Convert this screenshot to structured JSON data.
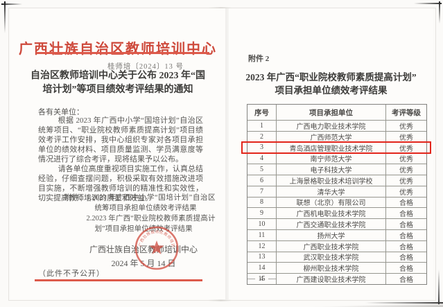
{
  "colors": {
    "letterhead_red": "#ce4a3c",
    "rule_red": "#dd5a4b",
    "highlight_red": "#e2251b",
    "seal_red": "#cf4437"
  },
  "left_page": {
    "letterhead": "广西壮族自治区教师培训中心",
    "doc_number": "桂师培〔2024〕13 号",
    "title_line1": "自治区教师培训中心关于公布 2023 年“国",
    "title_line2": "培计划”等项目绩效考评结果的通知",
    "salutation": "各有关单位：",
    "paragraphs": [
      "根据 2023 年广西中小学“国培计划”自治区统筹项目、“职业院校教师素质提高计划”项目绩效考评工作安排，我中心组织专家对各项目承担单位的绩效材料、项目质量监测、学员满意度等情况进行了综合考评，现将结果予以公布。",
      "请各单位高度重视项目实施工作，认真总结经验，仔细查摆问题，积极采取有效措施改进项目实施，不断增强教师培训的精准性和实效性，切实提高教师培训的质量和效益。"
    ],
    "attachments_label": "附件：",
    "attachments": [
      "1.2023 年广西中小学“国培计划”自治区统筹项目承担单位绩效考评结果",
      "2.2023 年广西“职业院校教师素质提高计划”项目承担单位绩效考评结果"
    ],
    "signature": "广西壮族自治区教师培训中心",
    "date": "2024 年 5 月 14 日",
    "confidential_note": "（此件不予公开）",
    "seal_text": "广西壮族自治区教师培训中心"
  },
  "right_page": {
    "attachment_label": "附件 2",
    "title_line1": "2023 年广西“职业院校教师素质提高计划”",
    "title_line2": "项目承担单位绩效考评结果",
    "table": {
      "headers": [
        "序号",
        "项目承担单位",
        "考评等级"
      ],
      "highlighted_row_no": "3",
      "rows": [
        {
          "no": "1",
          "unit": "广西电力职业技术学院",
          "grade": "优秀"
        },
        {
          "no": "2",
          "unit": "广西师范大学",
          "grade": "优秀"
        },
        {
          "no": "3",
          "unit": "青岛酒店管理职业技术学院",
          "grade": "优秀"
        },
        {
          "no": "4",
          "unit": "南宁师范大学",
          "grade": "优秀"
        },
        {
          "no": "5",
          "unit": "电子科技大学",
          "grade": "优秀"
        },
        {
          "no": "6",
          "unit": "上海景格职业技术培训学校",
          "grade": "优秀"
        },
        {
          "no": "7",
          "unit": "清华大学",
          "grade": "优秀"
        },
        {
          "no": "8",
          "unit": "联想（北京）有限公司",
          "grade": "合格"
        },
        {
          "no": "9",
          "unit": "广西机电职业技术学院",
          "grade": "合格"
        },
        {
          "no": "10",
          "unit": "广西交通职业技术学院",
          "grade": "合格"
        },
        {
          "no": "11",
          "unit": "扬州大学",
          "grade": "合格"
        },
        {
          "no": "12",
          "unit": "广西职业技术学院",
          "grade": "合格"
        },
        {
          "no": "13",
          "unit": "武汉职业技术学院",
          "grade": "合格"
        },
        {
          "no": "14",
          "unit": "柳州职业技术学院",
          "grade": "合格"
        },
        {
          "no": "15",
          "unit": "广西建设职业技术学院",
          "grade": "合格"
        }
      ]
    },
    "page_number": "— 4 —"
  }
}
